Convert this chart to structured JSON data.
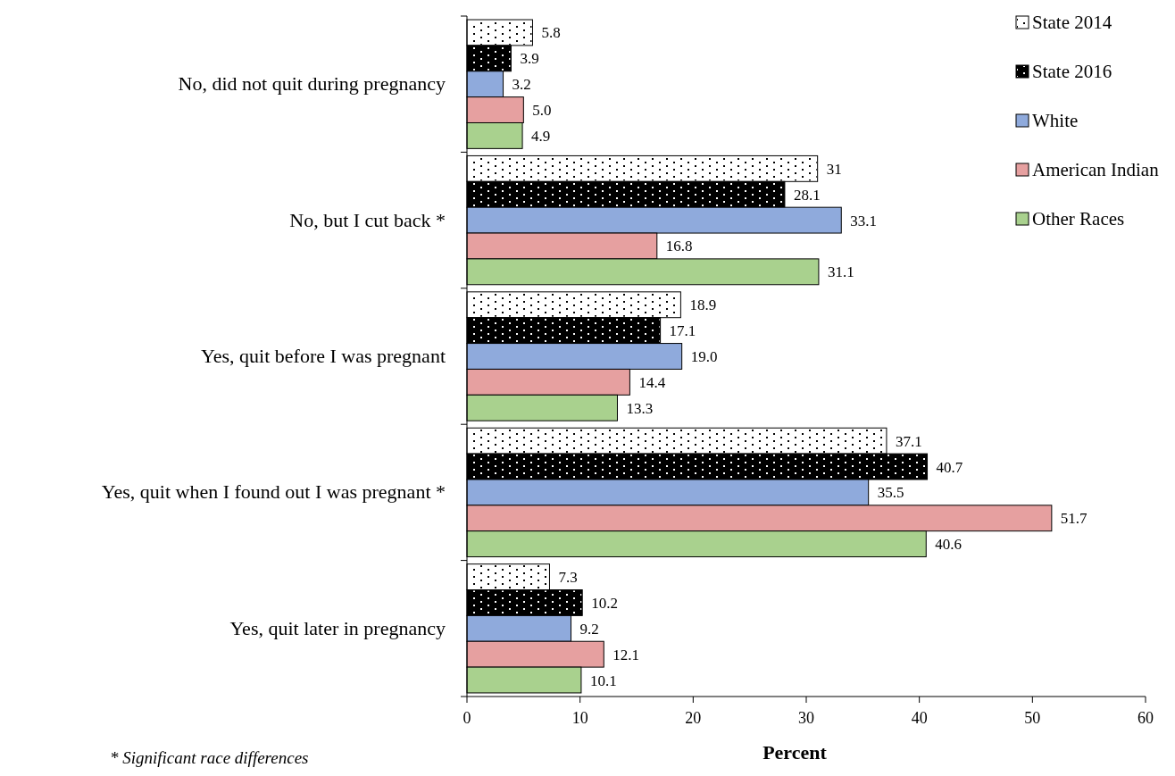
{
  "chart_data": {
    "type": "bar",
    "orientation": "horizontal",
    "xlabel": "Percent",
    "categories": [
      "No, did not quit during pregnancy",
      "No, but I cut back *",
      "Yes, quit before I was pregnant",
      "Yes, quit when I found out I was pregnant *",
      "Yes, quit later in pregnancy"
    ],
    "series": [
      {
        "name": "State 2014",
        "color": "#ffffff",
        "values": [
          5.8,
          31,
          18.9,
          37.1,
          7.3
        ],
        "value_labels": [
          "5.8",
          "31",
          "18.9",
          "37.1",
          "7.3"
        ]
      },
      {
        "name": "State 2016",
        "color": "#000000",
        "values": [
          3.9,
          28.1,
          17.1,
          40.7,
          10.2
        ],
        "value_labels": [
          "3.9",
          "28.1",
          "17.1",
          "40.7",
          "10.2"
        ]
      },
      {
        "name": "White",
        "color": "#8faadc",
        "values": [
          3.2,
          33.1,
          19.0,
          35.5,
          9.2
        ],
        "value_labels": [
          "3.2",
          "33.1",
          "19.0",
          "35.5",
          "9.2"
        ]
      },
      {
        "name": "American Indian",
        "color": "#e6a0a0",
        "values": [
          5.0,
          16.8,
          14.4,
          51.7,
          12.1
        ],
        "value_labels": [
          "5.0",
          "16.8",
          "14.4",
          "51.7",
          "12.1"
        ]
      },
      {
        "name": "Other Races",
        "color": "#a9d18e",
        "values": [
          4.9,
          31.1,
          13.3,
          40.6,
          10.1
        ],
        "value_labels": [
          "4.9",
          "31.1",
          "13.3",
          "40.6",
          "10.1"
        ]
      }
    ],
    "xlim": [
      0,
      60
    ],
    "xticks": [
      0,
      10,
      20,
      30,
      40,
      50,
      60
    ],
    "grid": false,
    "legend": "top right",
    "annotations": [
      "* Significant race differences"
    ]
  }
}
